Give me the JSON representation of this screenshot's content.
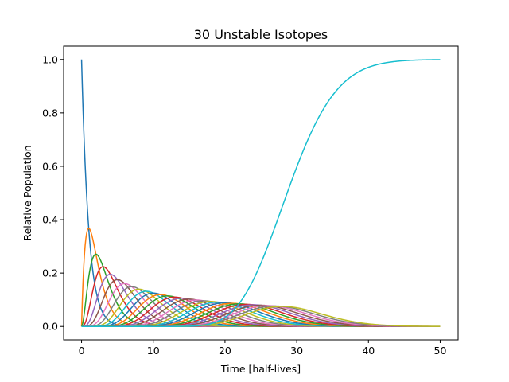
{
  "chart_data": {
    "type": "line",
    "title": "30 Unstable Isotopes",
    "xlabel": "Time [half-lives]",
    "ylabel": "Relative Population",
    "xlim": [
      -2.5,
      52.5
    ],
    "ylim": [
      -0.05,
      1.05
    ],
    "xticks": [
      0,
      10,
      20,
      30,
      40,
      50
    ],
    "yticks": [
      0.0,
      0.2,
      0.4,
      0.6,
      0.8,
      1.0
    ],
    "xtick_labels": [
      "0",
      "10",
      "20",
      "30",
      "40",
      "50"
    ],
    "ytick_labels": [
      "0.0",
      "0.2",
      "0.4",
      "0.6",
      "0.8",
      "1.0"
    ],
    "grid": false,
    "series_count": 30,
    "t_range": [
      0,
      50
    ],
    "model": "Bateman chain of equal-rate decays; series n (n = 0..29) peaks at t = n; the last series is the integral of the tail",
    "series_colors": [
      "#1f77b4",
      "#ff7f0e",
      "#2ca02c",
      "#d62728",
      "#9467bd",
      "#8c564b",
      "#e377c2",
      "#7f7f7f",
      "#bcbd22",
      "#17becf"
    ],
    "peaks_read": [
      {
        "t": 0,
        "y": 1.0
      },
      {
        "t": 1,
        "y": 0.368
      },
      {
        "t": 2,
        "y": 0.271
      },
      {
        "t": 3,
        "y": 0.224
      },
      {
        "t": 4,
        "y": 0.195
      },
      {
        "t": 10,
        "y": 0.125
      },
      {
        "t": 30,
        "y": 0.073
      }
    ]
  }
}
